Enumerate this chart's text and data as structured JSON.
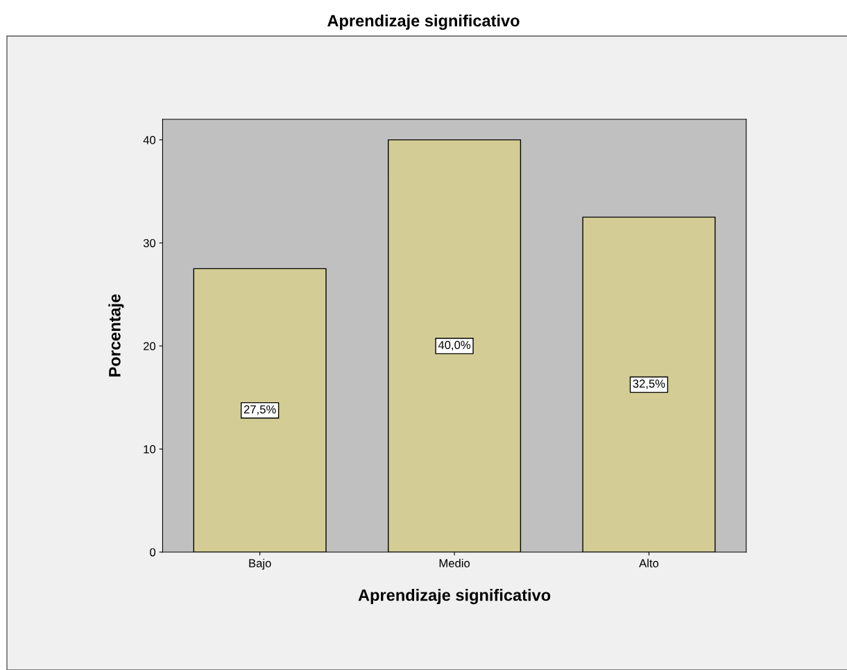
{
  "chart_data": {
    "type": "bar",
    "title": "Aprendizaje significativo",
    "xlabel": "Aprendizaje significativo",
    "ylabel": "Porcentaje",
    "categories": [
      "Bajo",
      "Medio",
      "Alto"
    ],
    "values": [
      27.5,
      40.0,
      32.5
    ],
    "value_labels": [
      "27,5%",
      "40,0%",
      "32,5%"
    ],
    "color": "#d3cd95",
    "ylim": [
      0,
      42
    ],
    "yticks": [
      0,
      10,
      20,
      30,
      40
    ],
    "grid": false,
    "legend": false
  }
}
